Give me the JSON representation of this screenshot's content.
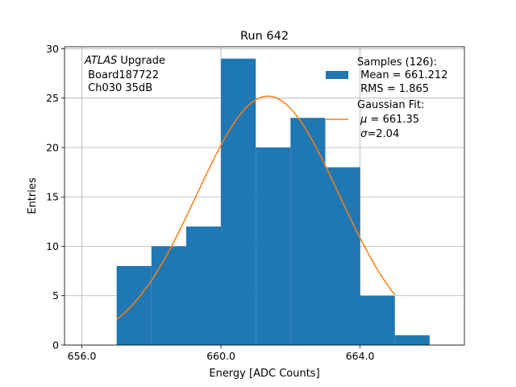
{
  "chart_data": {
    "type": "bar",
    "title": "Run 642",
    "xlabel": "Energy [ADC Counts]",
    "ylabel": "Entries",
    "xlim": [
      655.5,
      667.0
    ],
    "ylim": [
      0,
      30.2
    ],
    "grid": true,
    "x_ticks": [
      656.0,
      660.0,
      664.0
    ],
    "x_tick_labels": [
      "656.0",
      "660.0",
      "664.0"
    ],
    "y_ticks": [
      0,
      5,
      10,
      15,
      20,
      25,
      30
    ],
    "y_tick_labels": [
      "0",
      "5",
      "10",
      "15",
      "20",
      "25",
      "30"
    ],
    "histogram": {
      "name": "Samples (126):",
      "color": "#1f77b4",
      "bins": [
        {
          "lo": 657,
          "hi": 658,
          "count": 8
        },
        {
          "lo": 658,
          "hi": 659,
          "count": 10
        },
        {
          "lo": 659,
          "hi": 660,
          "count": 12
        },
        {
          "lo": 660,
          "hi": 661,
          "count": 29
        },
        {
          "lo": 661,
          "hi": 662,
          "count": 20
        },
        {
          "lo": 662,
          "hi": 663,
          "count": 23
        },
        {
          "lo": 663,
          "hi": 664,
          "count": 18
        },
        {
          "lo": 664,
          "hi": 665,
          "count": 5
        },
        {
          "lo": 665,
          "hi": 666,
          "count": 1
        }
      ]
    },
    "fit": {
      "name": "Gaussian Fit:",
      "color": "#ff7f0e",
      "amplitude": 25.2,
      "mu": 661.35,
      "sigma": 2.04,
      "x_range": [
        657.0,
        665.0
      ]
    },
    "annotation": {
      "italic": "ATLAS",
      "rest": " Upgrade",
      "line2": " Board187722",
      "line3": " Ch030 35dB"
    },
    "legend": {
      "position": "upper right",
      "samples_title": "Samples (126):",
      "samples_mean": " Mean = 661.212",
      "samples_rms": " RMS = 1.865",
      "fit_title": "Gaussian Fit:",
      "fit_mu_symbol": "μ",
      "fit_mu_value": " = 661.35",
      "fit_sigma_symbol": "σ",
      "fit_sigma_value": "=2.04"
    }
  }
}
